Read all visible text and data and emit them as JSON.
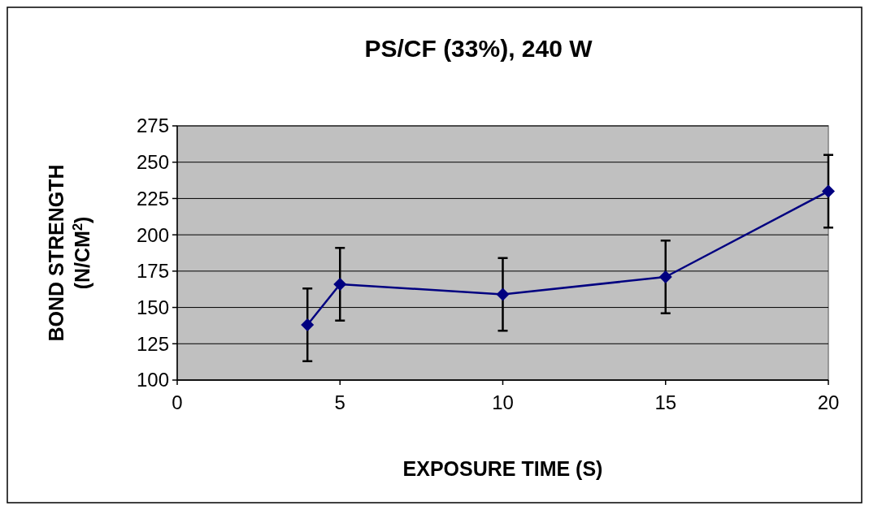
{
  "chart_data": {
    "type": "line",
    "title": "PS/CF (33%), 240 W",
    "xlabel": "EXPOSURE TIME (S)",
    "ylabel": "BOND STRENGTH (N/CM$^{2}$)",
    "x": [
      4,
      5,
      10,
      15,
      20
    ],
    "series": [
      {
        "color": "#000080",
        "values": [
          138,
          166,
          159,
          171,
          230
        ],
        "errors": [
          25,
          25,
          25,
          25,
          25
        ]
      }
    ],
    "xlim": [
      0,
      20
    ],
    "xticks": [
      0,
      5,
      10,
      15,
      20
    ],
    "ylim": [
      100,
      275
    ],
    "yticks": [
      100,
      125,
      150,
      175,
      200,
      225,
      250,
      275
    ],
    "grid": "y",
    "marker": "diamond",
    "line_style": "solid"
  }
}
